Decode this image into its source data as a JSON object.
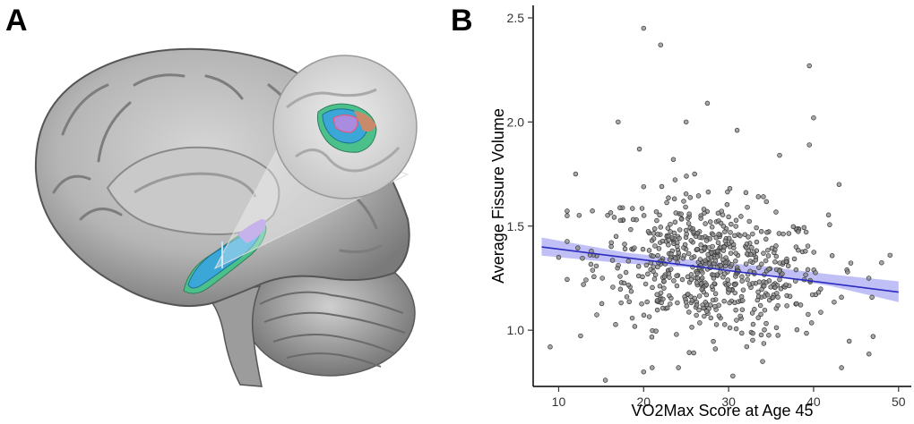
{
  "panels": {
    "a_label": "A",
    "b_label": "B"
  },
  "colors": {
    "regression_line": "#2b2bbf",
    "ci_band": "#8c8cf0",
    "points_fill": "#8a8a8a",
    "points_stroke": "#333333",
    "brain_gray": "#b8b8b8",
    "segment_blue": "#3aa7d8",
    "segment_purple": "#a98be0",
    "segment_green": "#4cc08a"
  },
  "chart_data": {
    "type": "scatter",
    "title": "",
    "xlabel": "VO2Max Score at Age 45",
    "ylabel": "Average Fissure Volume",
    "xlim": [
      7,
      51.5
    ],
    "ylim": [
      0.73,
      2.56
    ],
    "xticks": [
      10,
      20,
      30,
      40,
      50
    ],
    "yticks": [
      1.0,
      1.5,
      2.0,
      2.5
    ],
    "xtick_labels": [
      "10",
      "20",
      "30",
      "40",
      "50"
    ],
    "ytick_labels": [
      "1.0",
      "1.5",
      "2.0",
      "2.5"
    ],
    "grid": false,
    "regression": {
      "x0": 8,
      "y0": 1.4,
      "x1": 50,
      "y1": 1.183
    },
    "ci": [
      [
        8,
        1.358,
        1.445
      ],
      [
        18,
        1.32,
        1.372
      ],
      [
        27,
        1.298,
        1.332
      ],
      [
        34,
        1.265,
        1.308
      ],
      [
        42,
        1.212,
        1.268
      ],
      [
        50,
        1.135,
        1.235
      ]
    ],
    "highlight_points": [
      [
        20,
        2.45
      ],
      [
        22,
        2.37
      ],
      [
        39.5,
        2.27
      ],
      [
        27.5,
        2.09
      ],
      [
        40,
        2.02
      ],
      [
        17,
        2.0
      ],
      [
        25,
        2.0
      ],
      [
        31,
        1.96
      ],
      [
        39.5,
        1.89
      ],
      [
        19.5,
        1.87
      ],
      [
        36,
        1.84
      ],
      [
        23.5,
        1.82
      ],
      [
        12,
        1.75
      ],
      [
        26,
        1.75
      ],
      [
        43,
        1.7
      ],
      [
        9,
        0.92
      ],
      [
        15.5,
        0.76
      ],
      [
        30.5,
        0.78
      ],
      [
        20,
        0.8
      ],
      [
        34,
        0.85
      ],
      [
        47,
        0.97
      ],
      [
        49,
        1.36
      ],
      [
        44,
        1.28
      ],
      [
        46.5,
        1.25
      ],
      [
        10,
        1.35
      ]
    ],
    "cloud": {
      "n": 640,
      "x_center": 28,
      "x_sd": 6.8,
      "x_min": 11,
      "x_max": 48,
      "y_center": 1.3,
      "y_sd": 0.16,
      "y_min": 0.82,
      "y_max": 1.74
    }
  }
}
